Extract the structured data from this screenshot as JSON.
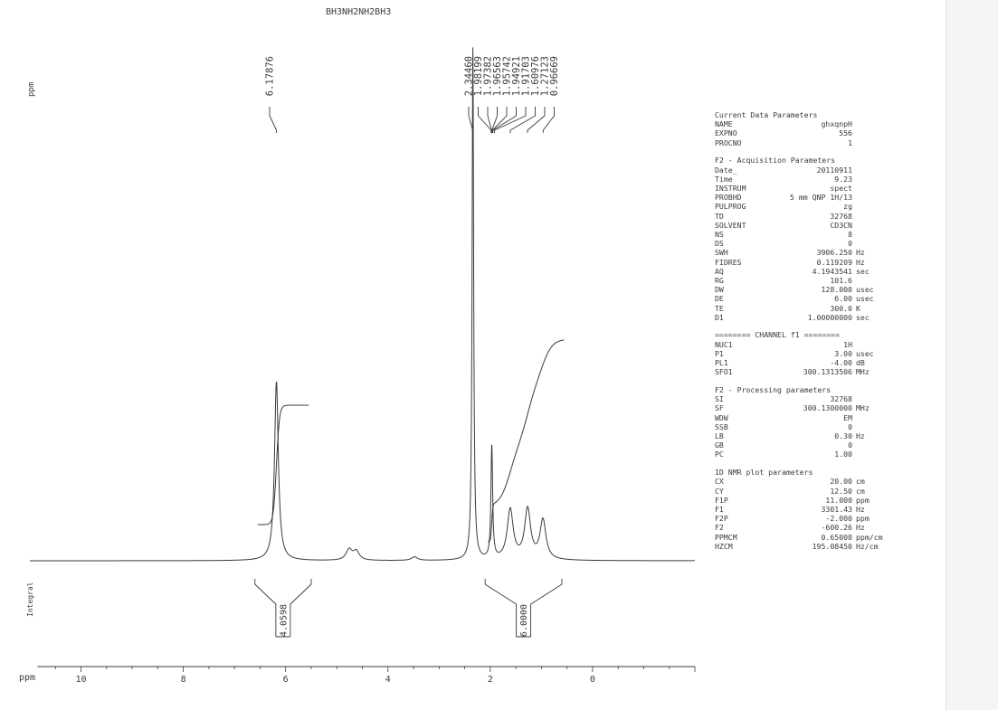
{
  "spectrum": {
    "title": "BH3NH2NH2BH3",
    "yaxis_label": "ppm",
    "integral_axis_label": "Integral"
  },
  "chart_data": {
    "type": "line",
    "title": "BH3NH2NH2BH3",
    "xlabel": "ppm",
    "xlim": [
      11.0,
      -2.0
    ],
    "x_ticks": [
      10,
      8,
      6,
      4,
      2,
      0
    ],
    "grid": false,
    "peak_labels_left": [
      "6.17876"
    ],
    "peak_labels_right": [
      "2.34460",
      "1.98199",
      "1.97382",
      "1.96563",
      "1.95742",
      "1.94921",
      "1.91703",
      "1.60976",
      "1.27123",
      "0.96669"
    ],
    "integrals": [
      {
        "label": "4.0598",
        "from": 6.6,
        "to": 5.5
      },
      {
        "label": "6.0000",
        "from": 2.1,
        "to": 0.6
      }
    ],
    "peaks": [
      {
        "ppm": 6.18,
        "height": 1.0
      },
      {
        "ppm": 4.76,
        "height": 0.06
      },
      {
        "ppm": 4.62,
        "height": 0.05
      },
      {
        "ppm": 3.48,
        "height": 0.02
      },
      {
        "ppm": 2.34,
        "height": 2.86
      },
      {
        "ppm": 1.97,
        "height": 0.63
      },
      {
        "ppm": 1.61,
        "height": 0.28
      },
      {
        "ppm": 1.27,
        "height": 0.28
      },
      {
        "ppm": 0.97,
        "height": 0.22
      }
    ]
  },
  "parameters": {
    "current": {
      "heading": "Current Data Parameters",
      "rows": [
        {
          "key": "NAME",
          "value": "ghxqnpH",
          "unit": ""
        },
        {
          "key": "EXPNO",
          "value": "556",
          "unit": ""
        },
        {
          "key": "PROCNO",
          "value": "1",
          "unit": ""
        }
      ]
    },
    "acquisition": {
      "heading": "F2 - Acquisition Parameters",
      "rows": [
        {
          "key": "Date_",
          "value": "20110911",
          "unit": ""
        },
        {
          "key": "Time",
          "value": "9.23",
          "unit": ""
        },
        {
          "key": "INSTRUM",
          "value": "spect",
          "unit": ""
        },
        {
          "key": "PROBHD",
          "value": "5 mm QNP 1H/13",
          "unit": ""
        },
        {
          "key": "PULPROG",
          "value": "zg",
          "unit": ""
        },
        {
          "key": "TD",
          "value": "32768",
          "unit": ""
        },
        {
          "key": "SOLVENT",
          "value": "CD3CN",
          "unit": ""
        },
        {
          "key": "NS",
          "value": "8",
          "unit": ""
        },
        {
          "key": "DS",
          "value": "0",
          "unit": ""
        },
        {
          "key": "SWH",
          "value": "3906.250",
          "unit": "Hz"
        },
        {
          "key": "FIDRES",
          "value": "0.119209",
          "unit": "Hz"
        },
        {
          "key": "AQ",
          "value": "4.1943541",
          "unit": "sec"
        },
        {
          "key": "RG",
          "value": "101.6",
          "unit": ""
        },
        {
          "key": "DW",
          "value": "128.000",
          "unit": "usec"
        },
        {
          "key": "DE",
          "value": "6.00",
          "unit": "usec"
        },
        {
          "key": "TE",
          "value": "300.0",
          "unit": "K"
        },
        {
          "key": "D1",
          "value": "1.00000000",
          "unit": "sec"
        }
      ]
    },
    "channel": {
      "heading": "======== CHANNEL f1 ========",
      "rows": [
        {
          "key": "NUC1",
          "value": "1H",
          "unit": ""
        },
        {
          "key": "P1",
          "value": "3.00",
          "unit": "usec"
        },
        {
          "key": "PL1",
          "value": "-4.00",
          "unit": "dB"
        },
        {
          "key": "SFO1",
          "value": "300.1313506",
          "unit": "MHz"
        }
      ]
    },
    "processing": {
      "heading": "F2 - Processing parameters",
      "rows": [
        {
          "key": "SI",
          "value": "32768",
          "unit": ""
        },
        {
          "key": "SF",
          "value": "300.1300000",
          "unit": "MHz"
        },
        {
          "key": "WDW",
          "value": "EM",
          "unit": ""
        },
        {
          "key": "SSB",
          "value": "0",
          "unit": ""
        },
        {
          "key": "LB",
          "value": "0.30",
          "unit": "Hz"
        },
        {
          "key": "GB",
          "value": "0",
          "unit": ""
        },
        {
          "key": "PC",
          "value": "1.00",
          "unit": ""
        }
      ]
    },
    "plot": {
      "heading": "1D NMR plot parameters",
      "rows": [
        {
          "key": "CX",
          "value": "20.00",
          "unit": "cm"
        },
        {
          "key": "CY",
          "value": "12.50",
          "unit": "cm"
        },
        {
          "key": "F1P",
          "value": "11.000",
          "unit": "ppm"
        },
        {
          "key": "F1",
          "value": "3301.43",
          "unit": "Hz"
        },
        {
          "key": "F2P",
          "value": "-2.000",
          "unit": "ppm"
        },
        {
          "key": "F2",
          "value": "-600.26",
          "unit": "Hz"
        },
        {
          "key": "PPMCM",
          "value": "0.65000",
          "unit": "ppm/cm"
        },
        {
          "key": "HZCM",
          "value": "195.08450",
          "unit": "Hz/cm"
        }
      ]
    }
  },
  "colors": {
    "ink": "#3a3a3a",
    "paper": "#ffffff",
    "margin": "#f1f1f1"
  }
}
